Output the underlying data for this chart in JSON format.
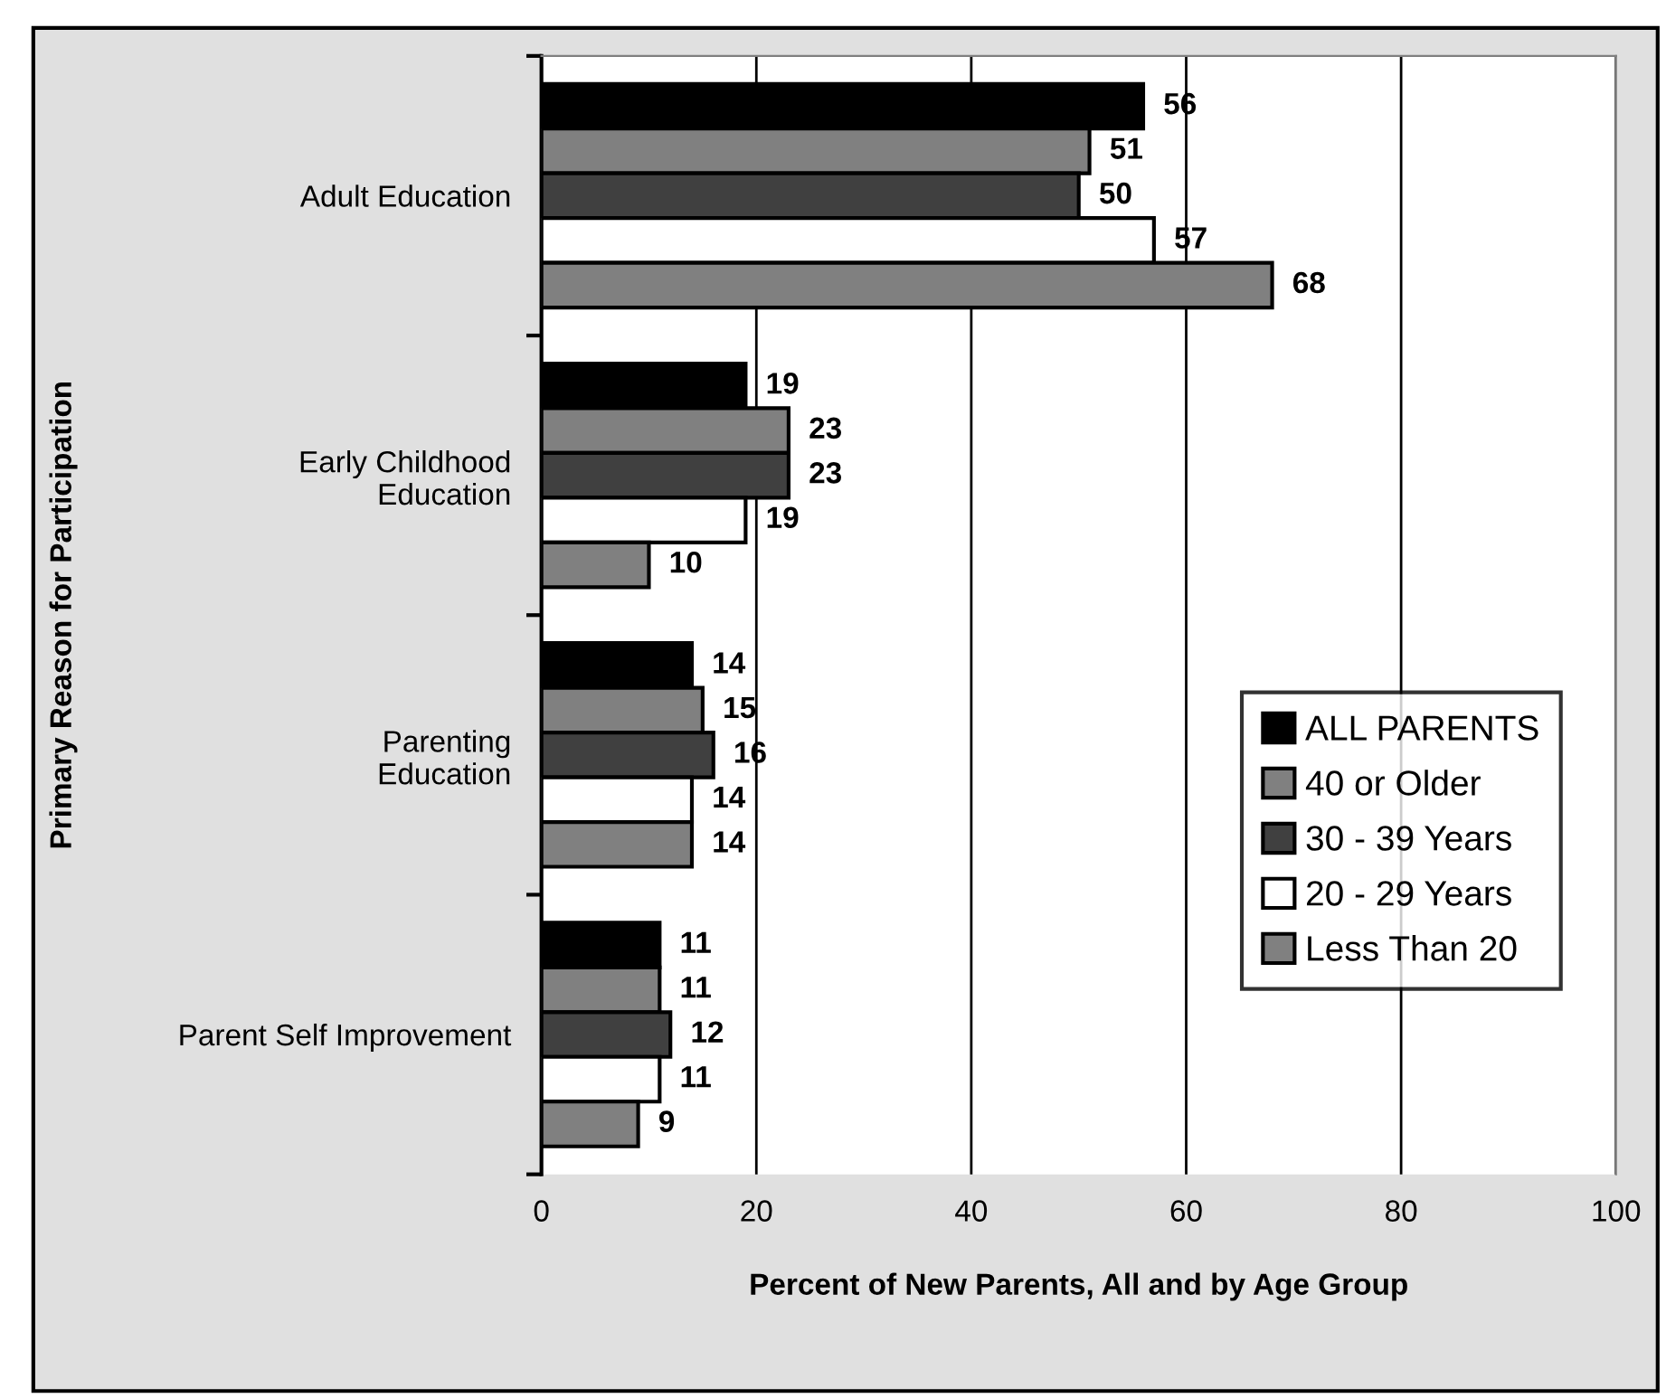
{
  "chart_data": {
    "type": "bar",
    "orientation": "horizontal",
    "xlabel": "Percent of New Parents, All and by Age Group",
    "ylabel": "Primary Reason for Participation",
    "categories": [
      "Adult Education",
      "Early Childhood Education",
      "Parenting Education",
      "Parent Self Improvement"
    ],
    "series": [
      {
        "name": "ALL PARENTS",
        "color": "#000000",
        "values": [
          56,
          19,
          14,
          11
        ]
      },
      {
        "name": "40 or Older",
        "color": "#808080",
        "values": [
          51,
          23,
          15,
          11
        ]
      },
      {
        "name": "30 - 39 Years",
        "color": "#404040",
        "values": [
          50,
          23,
          16,
          12
        ]
      },
      {
        "name": "20 - 29 Years",
        "color": "#ffffff",
        "values": [
          57,
          19,
          14,
          11
        ]
      },
      {
        "name": "Less Than 20",
        "color": "#808080",
        "values": [
          68,
          10,
          14,
          9
        ]
      }
    ],
    "xlim": [
      0,
      100
    ],
    "xticks": [
      0,
      20,
      40,
      60,
      80,
      100
    ],
    "grid": "x",
    "legend": "bottom right",
    "data_labels": true
  }
}
